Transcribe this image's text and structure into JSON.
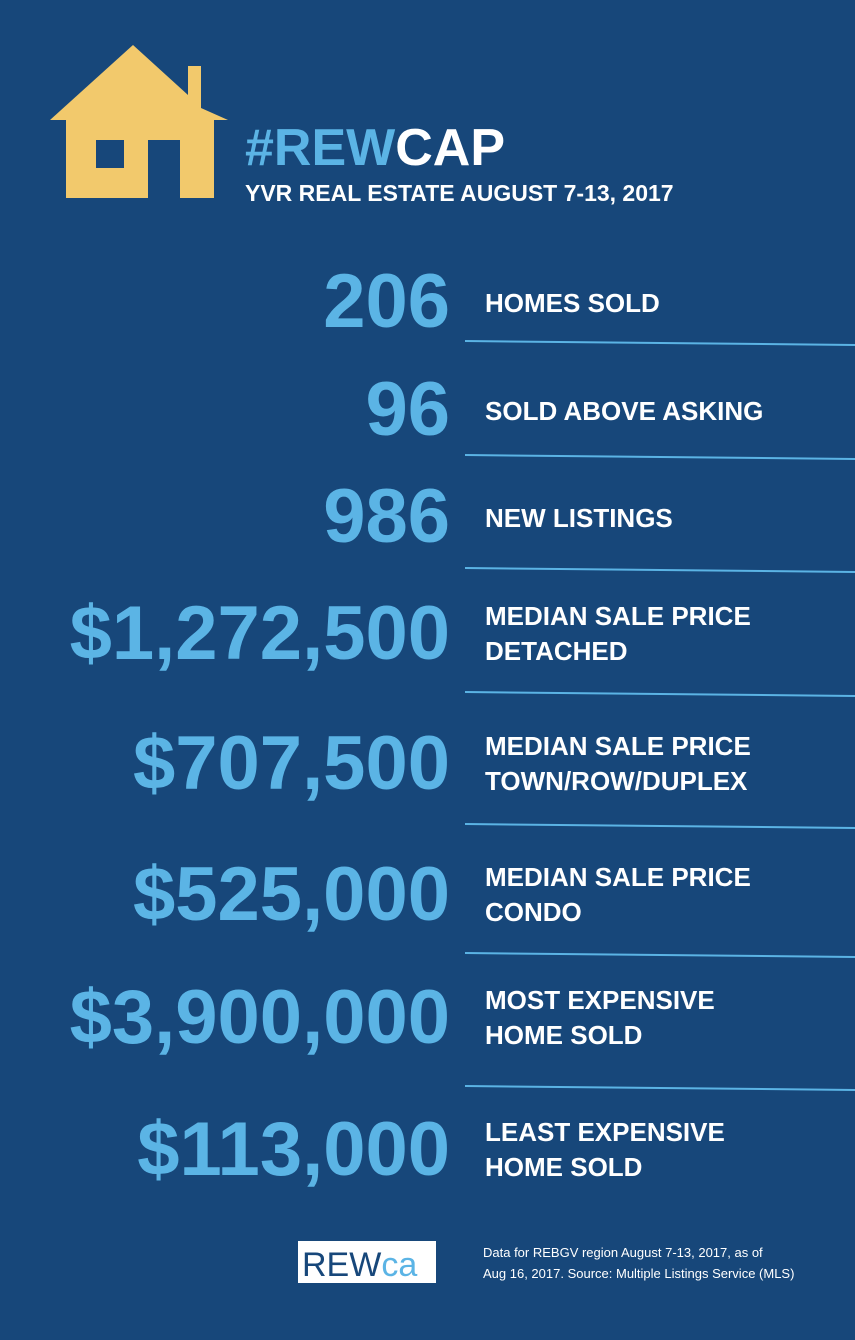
{
  "header": {
    "title": [
      "#REW",
      "CAP"
    ],
    "subtitle": "YVR REAL ESTATE AUGUST 7-13, 2017"
  },
  "stats": [
    {
      "value": "206",
      "label": [
        "HOMES SOLD"
      ]
    },
    {
      "value": "96",
      "label": [
        "SOLD ABOVE ASKING"
      ]
    },
    {
      "value": "986",
      "label": [
        "NEW LISTINGS"
      ]
    },
    {
      "value": "$1,272,500",
      "label": [
        "MEDIAN SALE PRICE",
        "DETACHED"
      ]
    },
    {
      "value": "$707,500",
      "label": [
        "MEDIAN SALE PRICE",
        "TOWN/ROW/DUPLEX"
      ]
    },
    {
      "value": "$525,000",
      "label": [
        "MEDIAN SALE PRICE",
        "CONDO"
      ]
    },
    {
      "value": "$3,900,000",
      "label": [
        "MOST EXPENSIVE",
        "HOME SOLD"
      ]
    },
    {
      "value": "$113,000",
      "label": [
        "LEAST EXPENSIVE",
        "HOME SOLD"
      ]
    }
  ],
  "footer": {
    "logo": [
      "REW",
      "ca"
    ],
    "note": [
      "Data for REBGV region August 7-13, 2017, as of",
      "Aug 16, 2017. Source: Multiple Listings Service (MLS)"
    ]
  }
}
